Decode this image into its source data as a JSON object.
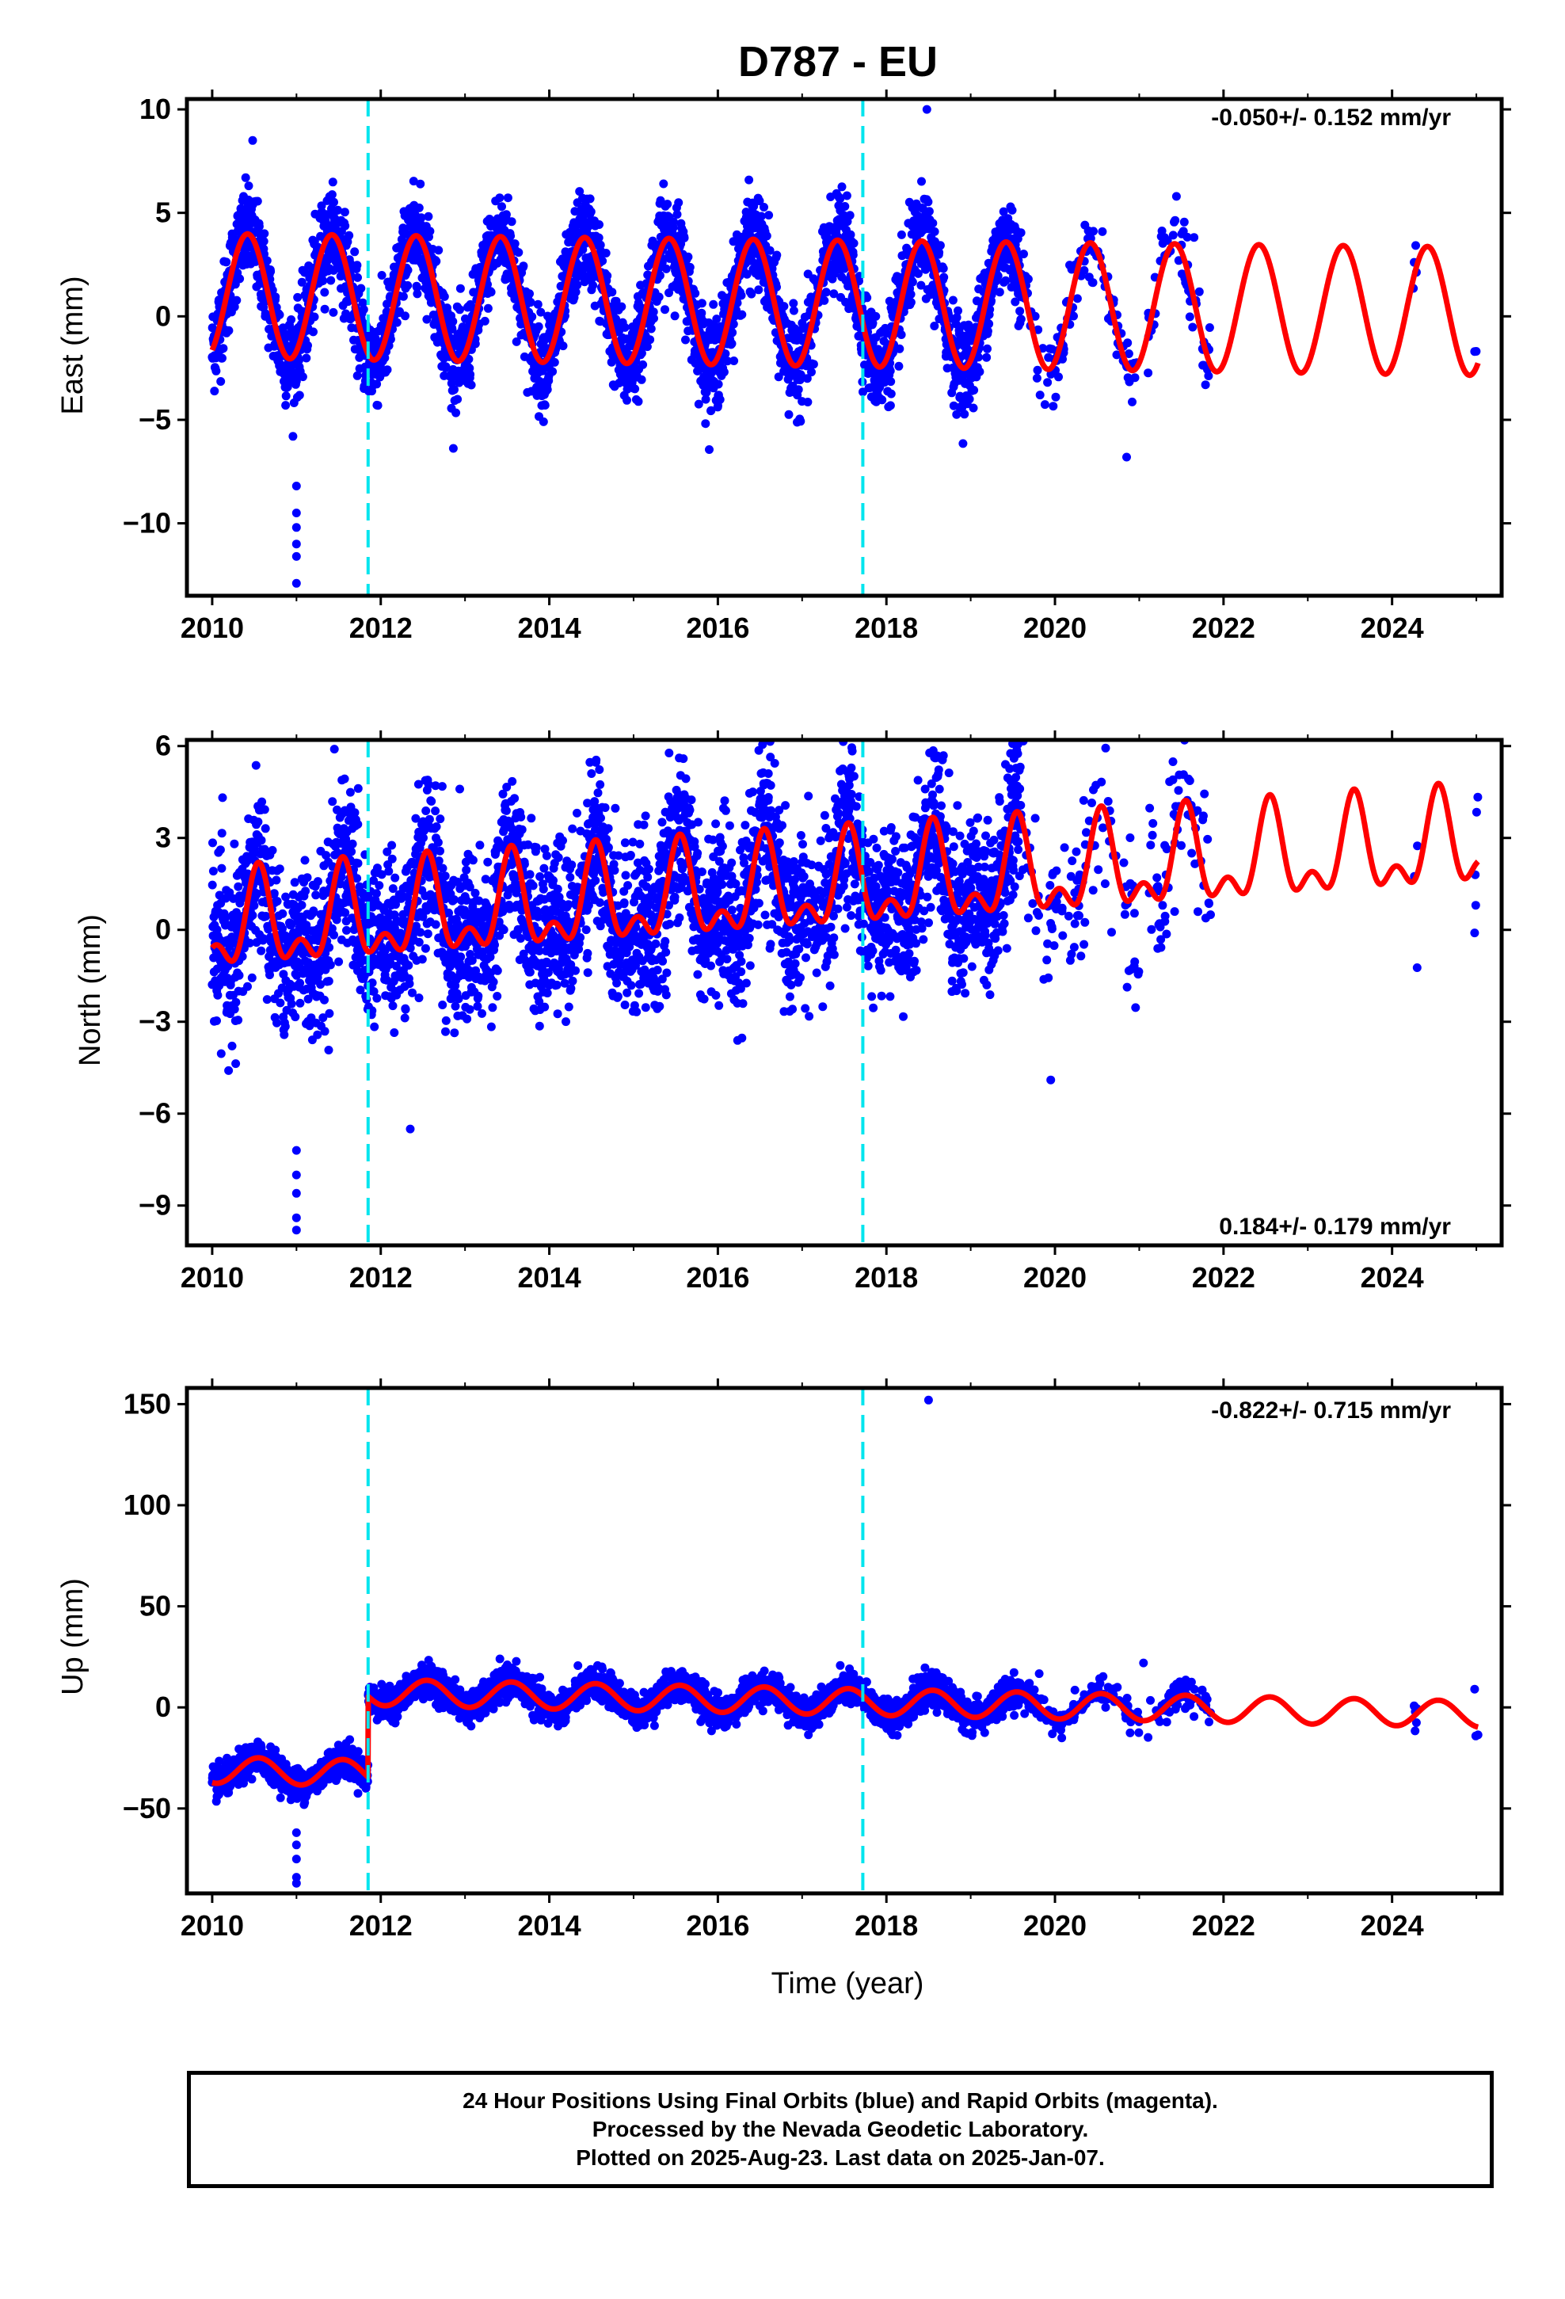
{
  "figure": {
    "title": "D787 - EU",
    "xlabel": "Time (year)",
    "colors": {
      "data": "#0000ff",
      "fit": "#ff0000",
      "event": "#00e5ee",
      "axis": "#000000"
    }
  },
  "footer": {
    "lines": [
      "24 Hour Positions Using Final Orbits (blue) and Rapid Orbits (magenta).",
      "Processed by the Nevada Geodetic Laboratory.",
      "Plotted on 2025-Aug-23. Last data on 2025-Jan-07."
    ]
  },
  "chart_data": [
    {
      "type": "scatter",
      "ylabel": "East (mm)",
      "rate": "-0.050+/- 0.152 mm/yr",
      "rate_position": "top-right",
      "xlim": [
        2009.7,
        2025.3
      ],
      "ylim": [
        -13.5,
        10.5
      ],
      "xticks": [
        2010,
        2012,
        2014,
        2016,
        2018,
        2020,
        2022,
        2024
      ],
      "yticks": [
        -10,
        -5,
        0,
        5,
        10
      ],
      "yticklabels": [
        "−10",
        "−5",
        "0",
        "5",
        "10"
      ],
      "event_lines": [
        2011.85,
        2017.72
      ],
      "data_range": [
        2010.0,
        2025.02
      ],
      "gaps": [
        [
          2021.0,
          2021.1
        ],
        [
          2021.85,
          2024.25
        ],
        [
          2024.3,
          2024.98
        ]
      ],
      "model": {
        "offset": 1.0,
        "rate": -0.05,
        "t0": 2010.0,
        "annual": {
          "amplitude": 3.0,
          "peak": 2010.42,
          "amplitude_end": 3.1
        },
        "semiannual": {
          "amplitude": 0.0,
          "peak": 2010.0
        },
        "steps": []
      },
      "scatter_sd": 1.1,
      "outliers": [
        {
          "x": 2010.48,
          "y": 8.5
        },
        {
          "x": 2018.48,
          "y": 10.0
        },
        {
          "x": 2011.0,
          "y": -8.2
        },
        {
          "x": 2011.0,
          "y": -9.5
        },
        {
          "x": 2011.0,
          "y": -10.2
        },
        {
          "x": 2011.0,
          "y": -11.0
        },
        {
          "x": 2011.0,
          "y": -11.6
        },
        {
          "x": 2011.0,
          "y": -12.9
        },
        {
          "x": 2020.85,
          "y": -6.8
        },
        {
          "x": 2024.98,
          "y": -1.7
        }
      ]
    },
    {
      "type": "scatter",
      "ylabel": "North (mm)",
      "rate": "0.184+/- 0.179 mm/yr",
      "rate_position": "bottom-right",
      "xlim": [
        2009.7,
        2025.3
      ],
      "ylim": [
        -10.3,
        6.2
      ],
      "xticks": [
        2010,
        2012,
        2014,
        2016,
        2018,
        2020,
        2022,
        2024
      ],
      "yticks": [
        -9,
        -6,
        -3,
        0,
        3,
        6
      ],
      "yticklabels": [
        "−9",
        "−6",
        "−3",
        "0",
        "3",
        "6"
      ],
      "event_lines": [
        2011.85,
        2017.72
      ],
      "data_range": [
        2010.0,
        2025.02
      ],
      "gaps": [
        [
          2021.0,
          2021.1
        ],
        [
          2021.85,
          2024.25
        ],
        [
          2024.3,
          2024.98
        ]
      ],
      "model": {
        "offset": 0.0,
        "rate": 0.184,
        "t0": 2010.0,
        "annual": {
          "amplitude": 1.3,
          "peak": 2010.55
        },
        "semiannual": {
          "amplitude": 0.8,
          "peak": 2010.55
        },
        "steps": []
      },
      "scatter_sd": 1.3,
      "outliers": [
        {
          "x": 2011.0,
          "y": -7.2
        },
        {
          "x": 2011.0,
          "y": -8.0
        },
        {
          "x": 2011.0,
          "y": -8.6
        },
        {
          "x": 2011.0,
          "y": -9.4
        },
        {
          "x": 2011.0,
          "y": -9.8
        },
        {
          "x": 2011.45,
          "y": 5.9
        },
        {
          "x": 2012.35,
          "y": -6.5
        },
        {
          "x": 2014.5,
          "y": 5.1
        },
        {
          "x": 2016.6,
          "y": 5.1
        },
        {
          "x": 2019.95,
          "y": -4.9
        },
        {
          "x": 2021.4,
          "y": 4.9
        },
        {
          "x": 2024.98,
          "y": -0.1
        }
      ]
    },
    {
      "type": "scatter",
      "ylabel": "Up (mm)",
      "rate": "-0.822+/- 0.715 mm/yr",
      "rate_position": "top-right",
      "xlim": [
        2009.7,
        2025.3
      ],
      "ylim": [
        -92,
        158
      ],
      "xticks": [
        2010,
        2012,
        2014,
        2016,
        2018,
        2020,
        2022,
        2024
      ],
      "yticks": [
        -50,
        0,
        50,
        100,
        150
      ],
      "yticklabels": [
        "−50",
        "0",
        "50",
        "100",
        "150"
      ],
      "event_lines": [
        2011.85,
        2017.72
      ],
      "data_range": [
        2010.0,
        2025.02
      ],
      "gaps": [
        [
          2021.0,
          2021.1
        ],
        [
          2021.85,
          2024.25
        ],
        [
          2024.3,
          2024.98
        ]
      ],
      "model": {
        "offset": -31.0,
        "rate": -0.822,
        "t0": 2010.0,
        "annual": {
          "amplitude": 6.5,
          "peak": 2010.55
        },
        "semiannual": {
          "amplitude": 0.0,
          "peak": 2010.0
        },
        "steps": [
          {
            "time": 2011.85,
            "size": 40.0
          }
        ]
      },
      "scatter_sd": 3.8,
      "outliers": [
        {
          "x": 2011.0,
          "y": -62
        },
        {
          "x": 2011.0,
          "y": -68
        },
        {
          "x": 2011.0,
          "y": -75
        },
        {
          "x": 2011.0,
          "y": -84
        },
        {
          "x": 2011.0,
          "y": -87
        },
        {
          "x": 2018.5,
          "y": 152
        },
        {
          "x": 2021.05,
          "y": 22
        },
        {
          "x": 2024.98,
          "y": 9
        }
      ]
    }
  ]
}
